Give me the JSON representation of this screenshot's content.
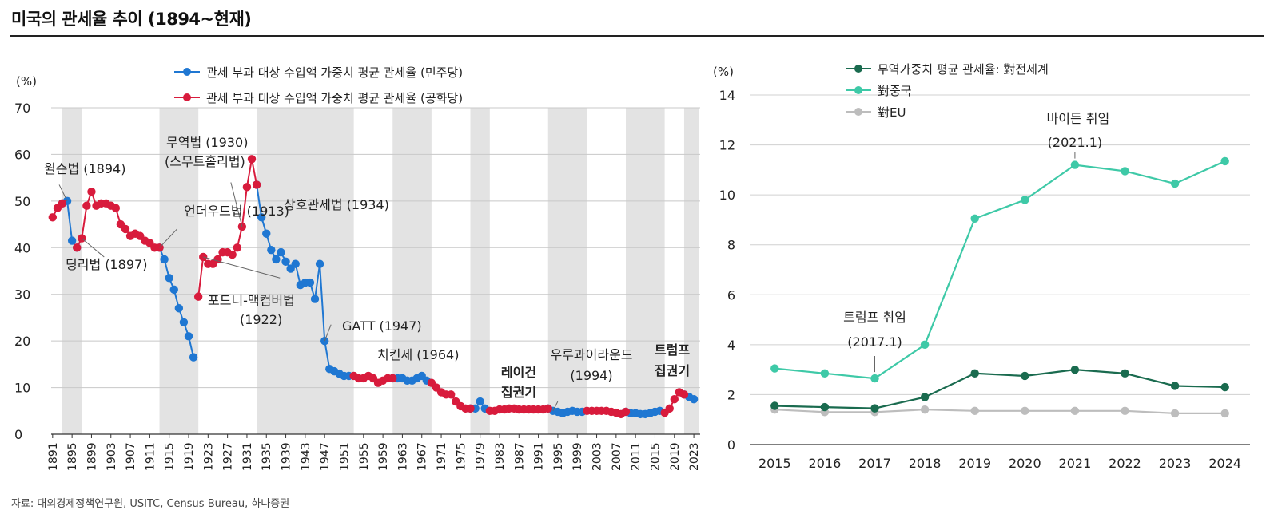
{
  "page_title": "미국의 관세율 추이 (1894~현재)",
  "source": "자료: 대외경제정책연구원, USITC, Census Bureau, 하나증권",
  "colors": {
    "democrat": "#1f77d2",
    "republican": "#d81b3c",
    "world": "#1a6b4f",
    "china": "#3ec9a7",
    "eu": "#bdbdbd",
    "shade": "#e3e3e3"
  },
  "chart_data": [
    {
      "type": "line",
      "unit_label": "(%)",
      "ylim": [
        0,
        70
      ],
      "yticks": [
        0,
        10,
        20,
        30,
        40,
        50,
        60,
        70
      ],
      "xlim": [
        1891,
        2024
      ],
      "xticks": [
        1891,
        1895,
        1899,
        1903,
        1907,
        1911,
        1915,
        1919,
        1923,
        1927,
        1931,
        1935,
        1939,
        1943,
        1947,
        1951,
        1955,
        1959,
        1963,
        1967,
        1971,
        1975,
        1979,
        1983,
        1987,
        1991,
        1995,
        1999,
        2003,
        2007,
        2011,
        2015,
        2019,
        2023
      ],
      "legend": [
        "관세 부과 대상 수입액 가중치 평균 관세율 (민주당)",
        "관세 부과 대상 수입액 가중치 평균 관세율 (공화당)"
      ],
      "shaded_periods": [
        [
          1893,
          1897
        ],
        [
          1913,
          1921
        ],
        [
          1933,
          1953
        ],
        [
          1961,
          1969
        ],
        [
          1977,
          1981
        ],
        [
          1993,
          2001
        ],
        [
          2009,
          2017
        ],
        [
          2021,
          2024
        ]
      ],
      "series": [
        {
          "name": "관세 부과 대상 수입액 가중치 평균 관세율 (민주당)",
          "color": "#1f77d2",
          "segments": [
            [
              [
                1893,
                49.5
              ],
              [
                1894,
                50
              ],
              [
                1895,
                41.5
              ],
              [
                1896,
                40
              ]
            ],
            [
              [
                1913,
                40
              ],
              [
                1914,
                37.5
              ],
              [
                1915,
                33.5
              ],
              [
                1916,
                31
              ],
              [
                1917,
                27
              ],
              [
                1918,
                24
              ],
              [
                1919,
                21
              ],
              [
                1920,
                16.5
              ]
            ],
            [
              [
                1933,
                53.5
              ],
              [
                1934,
                46.5
              ],
              [
                1935,
                43
              ],
              [
                1936,
                39.5
              ],
              [
                1937,
                37.5
              ],
              [
                1938,
                39
              ],
              [
                1939,
                37
              ],
              [
                1940,
                35.5
              ],
              [
                1941,
                36.5
              ],
              [
                1942,
                32
              ],
              [
                1943,
                32.5
              ],
              [
                1944,
                32.5
              ],
              [
                1945,
                29
              ],
              [
                1946,
                36.5
              ],
              [
                1947,
                20
              ],
              [
                1948,
                14
              ],
              [
                1949,
                13.5
              ],
              [
                1950,
                13
              ],
              [
                1951,
                12.5
              ],
              [
                1952,
                12.5
              ]
            ],
            [
              [
                1961,
                12
              ],
              [
                1962,
                12
              ],
              [
                1963,
                12
              ],
              [
                1964,
                11.5
              ],
              [
                1965,
                11.5
              ],
              [
                1966,
                12
              ],
              [
                1967,
                12.5
              ],
              [
                1968,
                11.5
              ]
            ],
            [
              [
                1977,
                5.5
              ],
              [
                1978,
                5.5
              ],
              [
                1979,
                7
              ],
              [
                1980,
                5.5
              ]
            ],
            [
              [
                1993,
                5.5
              ],
              [
                1994,
                5
              ],
              [
                1995,
                4.8
              ],
              [
                1996,
                4.5
              ],
              [
                1997,
                4.8
              ],
              [
                1998,
                5
              ],
              [
                1999,
                4.8
              ],
              [
                2000,
                4.8
              ]
            ],
            [
              [
                2009,
                4.8
              ],
              [
                2010,
                4.5
              ],
              [
                2011,
                4.5
              ],
              [
                2012,
                4.3
              ],
              [
                2013,
                4.3
              ],
              [
                2014,
                4.5
              ],
              [
                2015,
                4.8
              ],
              [
                2016,
                5
              ]
            ],
            [
              [
                2021,
                8.5
              ],
              [
                2022,
                8
              ],
              [
                2023,
                7.5
              ]
            ]
          ]
        },
        {
          "name": "관세 부과 대상 수입액 가중치 평균 관세율 (공화당)",
          "color": "#d81b3c",
          "segments": [
            [
              [
                1891,
                46.5
              ],
              [
                1892,
                48.5
              ],
              [
                1893,
                49.5
              ]
            ],
            [
              [
                1896,
                40
              ],
              [
                1897,
                42
              ],
              [
                1898,
                49
              ],
              [
                1899,
                52
              ],
              [
                1900,
                49
              ],
              [
                1901,
                49.5
              ],
              [
                1902,
                49.5
              ],
              [
                1903,
                49
              ],
              [
                1904,
                48.5
              ],
              [
                1905,
                45
              ],
              [
                1906,
                44
              ],
              [
                1907,
                42.5
              ],
              [
                1908,
                43
              ],
              [
                1909,
                42.5
              ],
              [
                1910,
                41.5
              ],
              [
                1911,
                41
              ],
              [
                1912,
                40
              ],
              [
                1913,
                40
              ]
            ],
            [
              [
                1921,
                29.5
              ],
              [
                1922,
                38
              ],
              [
                1923,
                36.5
              ],
              [
                1924,
                36.5
              ],
              [
                1925,
                37.5
              ],
              [
                1926,
                39
              ],
              [
                1927,
                39
              ],
              [
                1928,
                38.5
              ],
              [
                1929,
                40
              ],
              [
                1930,
                44.5
              ],
              [
                1931,
                53
              ],
              [
                1932,
                59
              ],
              [
                1933,
                53.5
              ]
            ],
            [
              [
                1953,
                12.5
              ],
              [
                1954,
                12
              ],
              [
                1955,
                12
              ],
              [
                1956,
                12.5
              ],
              [
                1957,
                12
              ],
              [
                1958,
                11
              ],
              [
                1959,
                11.5
              ],
              [
                1960,
                12
              ],
              [
                1961,
                12
              ]
            ],
            [
              [
                1969,
                11
              ],
              [
                1970,
                10
              ],
              [
                1971,
                9
              ],
              [
                1972,
                8.5
              ],
              [
                1973,
                8.5
              ],
              [
                1974,
                7
              ],
              [
                1975,
                6
              ],
              [
                1976,
                5.5
              ],
              [
                1977,
                5.5
              ]
            ],
            [
              [
                1981,
                5
              ],
              [
                1982,
                5
              ],
              [
                1983,
                5.3
              ],
              [
                1984,
                5.3
              ],
              [
                1985,
                5.5
              ],
              [
                1986,
                5.5
              ],
              [
                1987,
                5.3
              ],
              [
                1988,
                5.3
              ],
              [
                1989,
                5.3
              ],
              [
                1990,
                5.3
              ],
              [
                1991,
                5.3
              ],
              [
                1992,
                5.3
              ],
              [
                1993,
                5.5
              ]
            ],
            [
              [
                2001,
                5
              ],
              [
                2002,
                5
              ],
              [
                2003,
                5
              ],
              [
                2004,
                5
              ],
              [
                2005,
                5
              ],
              [
                2006,
                4.8
              ],
              [
                2007,
                4.6
              ],
              [
                2008,
                4.3
              ],
              [
                2009,
                4.8
              ]
            ],
            [
              [
                2017,
                4.6
              ],
              [
                2018,
                5.5
              ],
              [
                2019,
                7.5
              ],
              [
                2020,
                9
              ],
              [
                2021,
                8.5
              ]
            ]
          ]
        }
      ],
      "annotations": [
        {
          "text": "윌슨법 (1894)",
          "x": 1894,
          "y": 50
        },
        {
          "text": "딩리법 (1897)",
          "x": 1897,
          "y": 42
        },
        {
          "text": "언더우드법 (1913)",
          "x": 1913,
          "y": 40
        },
        {
          "text": "무역법 (1930)",
          "x": 1930,
          "y": 44.5
        },
        {
          "text": "(스무트홀리법)",
          "x": 1930,
          "y": 44.5
        },
        {
          "text": "상호관세법 (1934)",
          "x": 1934,
          "y": 46.5
        },
        {
          "text": "포드니-맥컴버법",
          "x": 1922,
          "y": 38
        },
        {
          "text": "(1922)",
          "x": 1922,
          "y": 38
        },
        {
          "text": "GATT (1947)",
          "x": 1947,
          "y": 20
        },
        {
          "text": "치킨세 (1964)",
          "x": 1964,
          "y": 11.5
        },
        {
          "text": "레이건",
          "x": 1984,
          "y": 5.3
        },
        {
          "text": "집권기",
          "x": 1984,
          "y": 5.3
        },
        {
          "text": "우루과이라운드",
          "x": 1994,
          "y": 5
        },
        {
          "text": "(1994)",
          "x": 1994,
          "y": 5
        },
        {
          "text": "트럼프",
          "x": 2019,
          "y": 7.5
        },
        {
          "text": "집권기",
          "x": 2019,
          "y": 7.5
        }
      ]
    },
    {
      "type": "line",
      "unit_label": "(%)",
      "ylim": [
        0,
        14
      ],
      "yticks": [
        0,
        2,
        4,
        6,
        8,
        10,
        12,
        14
      ],
      "categories": [
        "2015",
        "2016",
        "2017",
        "2018",
        "2019",
        "2020",
        "2021",
        "2022",
        "2023",
        "2024"
      ],
      "legend": [
        "무역가중치 평균 관세율: 對전세계",
        "對중국",
        "對EU"
      ],
      "series": [
        {
          "name": "무역가중치 평균 관세율: 對전세계",
          "color": "#1a6b4f",
          "values": [
            1.55,
            1.5,
            1.45,
            1.9,
            2.85,
            2.75,
            3.0,
            2.85,
            2.35,
            2.3
          ]
        },
        {
          "name": "對중국",
          "color": "#3ec9a7",
          "values": [
            3.05,
            2.85,
            2.65,
            4.0,
            9.05,
            9.8,
            11.2,
            10.95,
            10.45,
            11.35
          ]
        },
        {
          "name": "對EU",
          "color": "#bdbdbd",
          "values": [
            1.4,
            1.3,
            1.3,
            1.4,
            1.35,
            1.35,
            1.35,
            1.35,
            1.25,
            1.25
          ]
        }
      ],
      "annotations": [
        {
          "text": "트럼프 취임",
          "x": "2017"
        },
        {
          "text": "(2017.1)",
          "x": "2017"
        },
        {
          "text": "바이든 취임",
          "x": "2021"
        },
        {
          "text": "(2021.1)",
          "x": "2021"
        }
      ]
    }
  ]
}
